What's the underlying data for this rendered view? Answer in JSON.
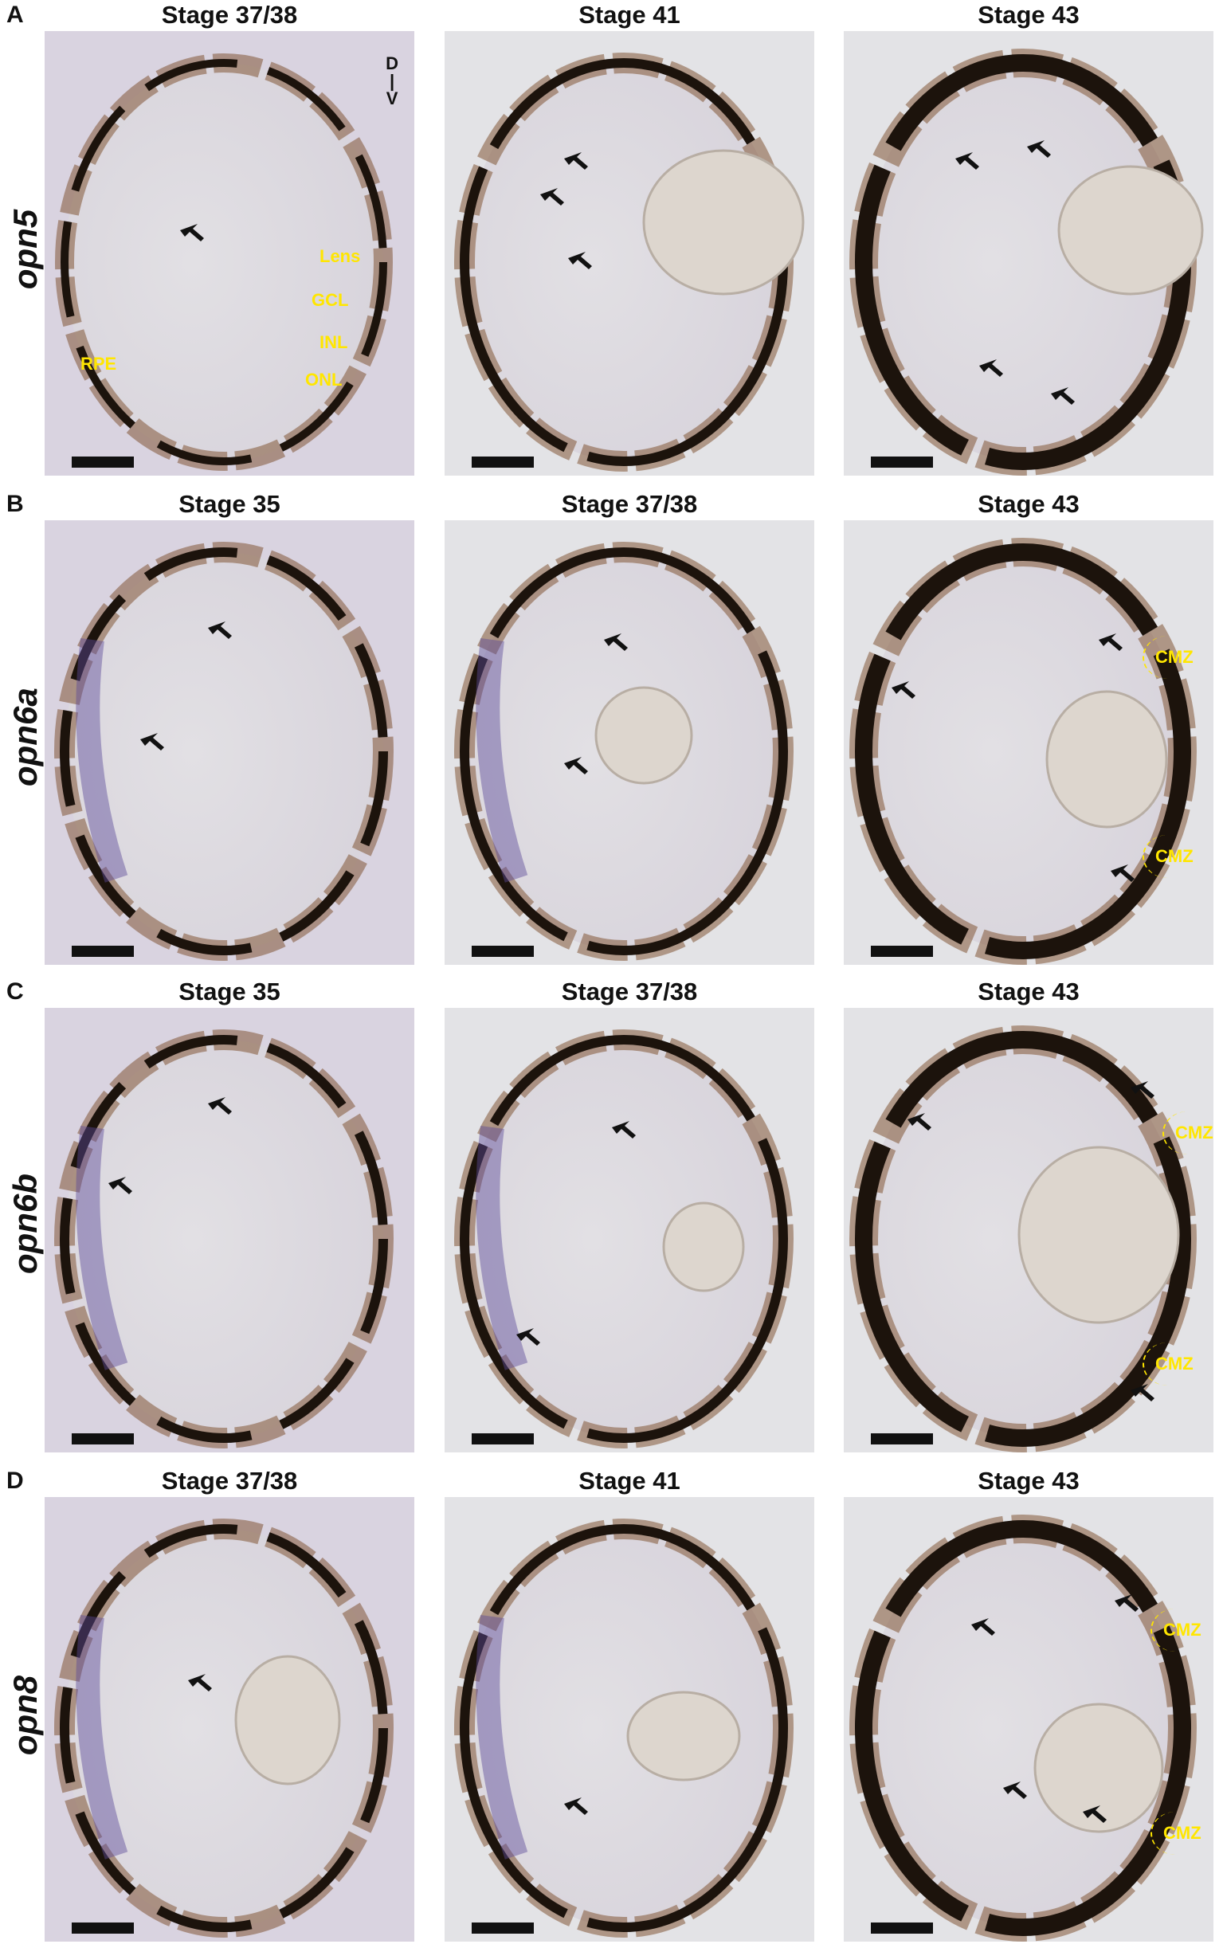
{
  "figure": {
    "rows": [
      {
        "letter": "A",
        "gene": "opn5",
        "panels": [
          {
            "stage": "Stage 37/38",
            "orientation": {
              "dorsal": "D",
              "ventral": "V"
            },
            "labels": {
              "lens": "Lens",
              "gcl": "GCL",
              "inl": "INL",
              "onl": "ONL",
              "rpe": "RPE"
            }
          },
          {
            "stage": "Stage 41"
          },
          {
            "stage": "Stage 43"
          }
        ]
      },
      {
        "letter": "B",
        "gene": "opn6a",
        "panels": [
          {
            "stage": "Stage 35"
          },
          {
            "stage": "Stage 37/38"
          },
          {
            "stage": "Stage 43",
            "cmz": [
              "CMZ",
              "CMZ"
            ]
          }
        ]
      },
      {
        "letter": "C",
        "gene": "opn6b",
        "panels": [
          {
            "stage": "Stage 35"
          },
          {
            "stage": "Stage 37/38"
          },
          {
            "stage": "Stage 43",
            "cmz": [
              "CMZ",
              "CMZ"
            ]
          }
        ]
      },
      {
        "letter": "D",
        "gene": "opn8",
        "panels": [
          {
            "stage": "Stage 37/38"
          },
          {
            "stage": "Stage 41"
          },
          {
            "stage": "Stage 43",
            "cmz": [
              "CMZ",
              "CMZ"
            ]
          }
        ]
      }
    ],
    "colors": {
      "pigment": "#1c130c",
      "stain": "#5a4a9a",
      "label": "#ffe600",
      "background": "#e6e6e8"
    }
  }
}
